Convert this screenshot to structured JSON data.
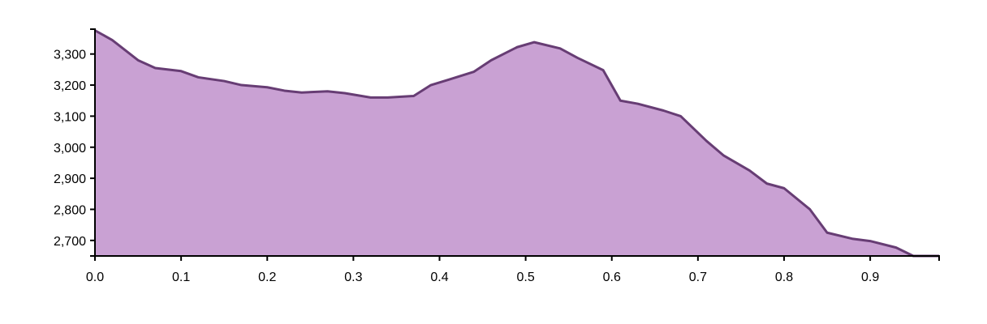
{
  "chart_data": {
    "type": "area",
    "x": [
      0.0,
      0.02,
      0.05,
      0.07,
      0.1,
      0.12,
      0.15,
      0.17,
      0.2,
      0.22,
      0.24,
      0.27,
      0.29,
      0.32,
      0.34,
      0.37,
      0.39,
      0.41,
      0.44,
      0.46,
      0.49,
      0.51,
      0.54,
      0.56,
      0.59,
      0.61,
      0.63,
      0.66,
      0.68,
      0.71,
      0.73,
      0.76,
      0.78,
      0.8,
      0.83,
      0.85,
      0.88,
      0.9,
      0.93,
      0.95,
      0.98
    ],
    "values": [
      3376,
      3345,
      3280,
      3255,
      3245,
      3225,
      3213,
      3200,
      3193,
      3182,
      3176,
      3180,
      3174,
      3160,
      3160,
      3165,
      3200,
      3217,
      3243,
      3280,
      3322,
      3338,
      3318,
      3288,
      3248,
      3150,
      3140,
      3118,
      3100,
      3020,
      2973,
      2925,
      2883,
      2868,
      2800,
      2725,
      2705,
      2698,
      2677,
      2650,
      2650
    ],
    "xlim": [
      0,
      0.98
    ],
    "ylim": [
      2650,
      3380
    ],
    "x_ticks": [
      0.0,
      0.1,
      0.2,
      0.3,
      0.4,
      0.5,
      0.6,
      0.7,
      0.8,
      0.9
    ],
    "x_tick_labels": [
      "0.0",
      "0.1",
      "0.2",
      "0.3",
      "0.4",
      "0.5",
      "0.6",
      "0.7",
      "0.8",
      "0.9"
    ],
    "y_ticks": [
      2700,
      2800,
      2900,
      3000,
      3100,
      3200,
      3300
    ],
    "y_tick_labels": [
      "2,700",
      "2,800",
      "2,900",
      "3,000",
      "3,100",
      "3,200",
      "3,300"
    ],
    "fill_color": "#c9a1d3",
    "line_color": "#673d74",
    "axis_color": "#000000",
    "grid": false
  }
}
